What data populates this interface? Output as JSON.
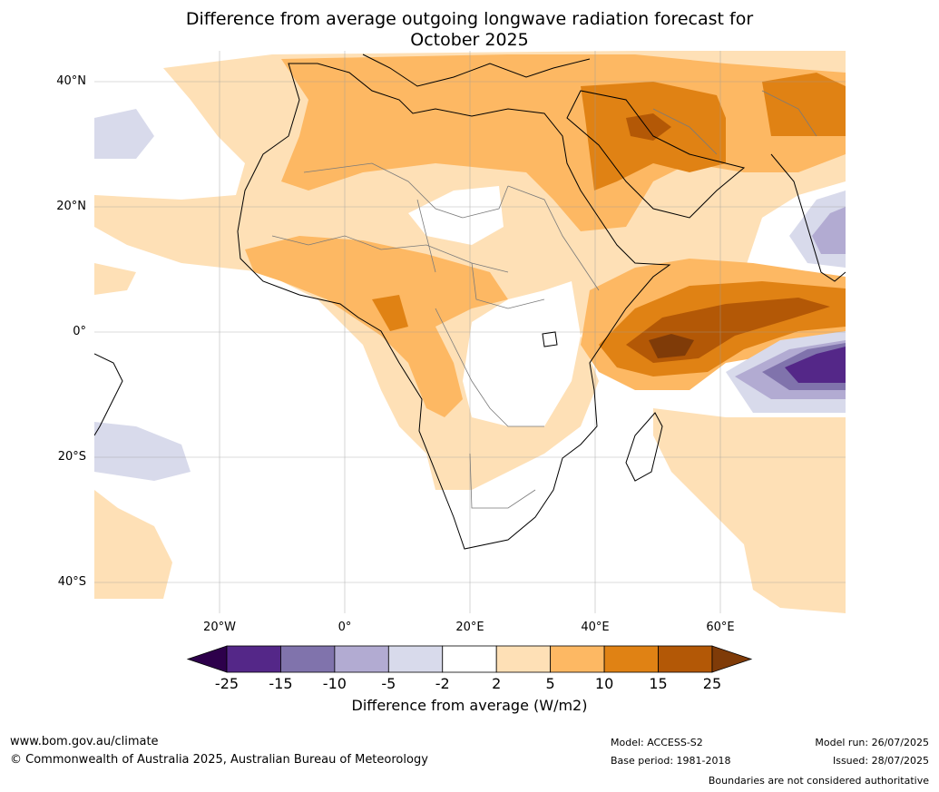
{
  "title_line1": "Difference from average outgoing longwave radiation forecast for",
  "title_line2": "October 2025",
  "lat_labels": [
    "40°N",
    "20°N",
    "0°",
    "20°S",
    "40°S"
  ],
  "lon_labels": [
    "20°W",
    "0°",
    "20°E",
    "40°E",
    "60°E"
  ],
  "colorbar": {
    "ticks": [
      "-25",
      "-15",
      "-10",
      "-5",
      "-2",
      "2",
      "5",
      "10",
      "15",
      "25"
    ],
    "colors": [
      "#2d004b",
      "#542788",
      "#8073ac",
      "#b2abd2",
      "#d8daeb",
      "#ffffff",
      "#fee0b6",
      "#fdb863",
      "#e08214",
      "#b35806",
      "#7f3b08"
    ],
    "label": "Difference from average (W/m2)"
  },
  "footer": {
    "url": "www.bom.gov.au/climate",
    "copyright": "© Commonwealth of Australia 2025, Australian Bureau of Meteorology",
    "model": "Model: ACCESS-S2",
    "base_period": "Base period: 1981-2018",
    "model_run": "Model run: 26/07/2025",
    "issued": "Issued: 28/07/2025",
    "disclaimer": "Boundaries are not considered authoritative"
  }
}
